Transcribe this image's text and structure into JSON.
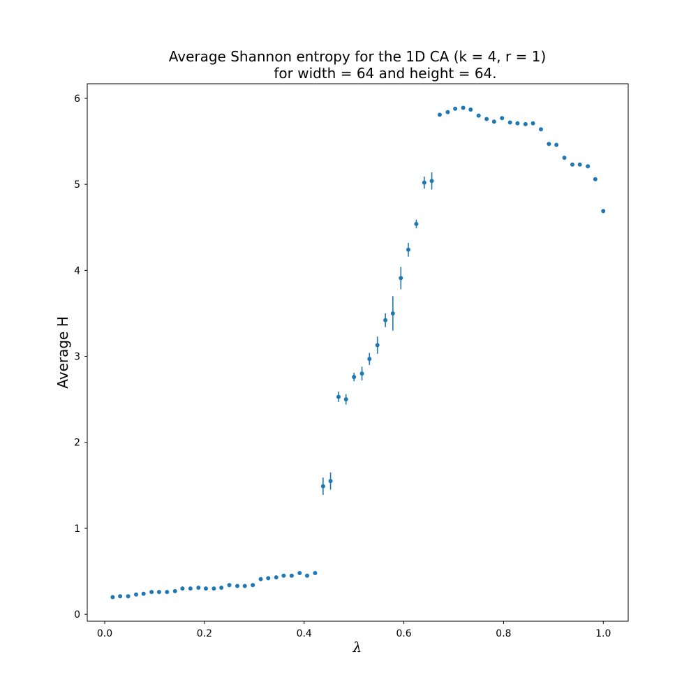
{
  "chart_data": {
    "type": "scatter",
    "title_line1": "Average Shannon entropy for the 1D CA (k = 4, r = 1)",
    "title_line2": "for width = 64 and height = 64.",
    "xlabel": "λ",
    "ylabel": "Average H",
    "xlim": [
      -0.035,
      1.05
    ],
    "ylim": [
      -0.08,
      6.17
    ],
    "xticks": [
      0.0,
      0.2,
      0.4,
      0.6,
      0.8,
      1.0
    ],
    "xtick_labels": [
      "0.0",
      "0.2",
      "0.4",
      "0.6",
      "0.8",
      "1.0"
    ],
    "yticks": [
      0,
      1,
      2,
      3,
      4,
      5,
      6
    ],
    "ytick_labels": [
      "0",
      "1",
      "2",
      "3",
      "4",
      "5",
      "6"
    ],
    "grid": false,
    "marker_color": "#1f77b4",
    "series": [
      {
        "x": [
          0.016,
          0.031,
          0.047,
          0.063,
          0.078,
          0.094,
          0.109,
          0.125,
          0.141,
          0.156,
          0.172,
          0.188,
          0.203,
          0.219,
          0.234,
          0.25,
          0.266,
          0.281,
          0.297,
          0.313,
          0.328,
          0.344,
          0.359,
          0.375,
          0.391,
          0.406,
          0.422,
          0.438,
          0.453,
          0.469,
          0.484,
          0.5,
          0.516,
          0.531,
          0.547,
          0.563,
          0.578,
          0.594,
          0.609,
          0.625,
          0.641,
          0.656,
          0.672,
          0.688,
          0.703,
          0.719,
          0.734,
          0.75,
          0.766,
          0.781,
          0.797,
          0.813,
          0.828,
          0.844,
          0.859,
          0.875,
          0.891,
          0.906,
          0.922,
          0.938,
          0.953,
          0.969,
          0.984,
          1.0
        ],
        "y": [
          0.2,
          0.21,
          0.21,
          0.23,
          0.24,
          0.26,
          0.26,
          0.26,
          0.27,
          0.3,
          0.3,
          0.31,
          0.3,
          0.3,
          0.31,
          0.34,
          0.33,
          0.33,
          0.34,
          0.41,
          0.42,
          0.43,
          0.45,
          0.45,
          0.48,
          0.45,
          0.48,
          1.49,
          1.55,
          2.53,
          2.5,
          2.76,
          2.8,
          2.97,
          3.13,
          3.42,
          3.5,
          3.91,
          4.24,
          4.54,
          5.02,
          5.04,
          5.81,
          5.84,
          5.88,
          5.89,
          5.87,
          5.8,
          5.76,
          5.73,
          5.77,
          5.72,
          5.71,
          5.7,
          5.71,
          5.64,
          5.47,
          5.46,
          5.31,
          5.23,
          5.23,
          5.21,
          5.06,
          4.69
        ],
        "yerr": [
          0,
          0,
          0,
          0,
          0,
          0,
          0,
          0,
          0,
          0,
          0,
          0,
          0,
          0,
          0,
          0,
          0,
          0,
          0,
          0,
          0,
          0,
          0,
          0,
          0.02,
          0.02,
          0.02,
          0.1,
          0.1,
          0.06,
          0.06,
          0.05,
          0.08,
          0.07,
          0.1,
          0.08,
          0.2,
          0.13,
          0.08,
          0.05,
          0.07,
          0.1,
          0,
          0,
          0,
          0,
          0,
          0,
          0,
          0,
          0,
          0,
          0,
          0,
          0,
          0,
          0,
          0,
          0,
          0,
          0,
          0,
          0,
          0
        ]
      }
    ]
  }
}
